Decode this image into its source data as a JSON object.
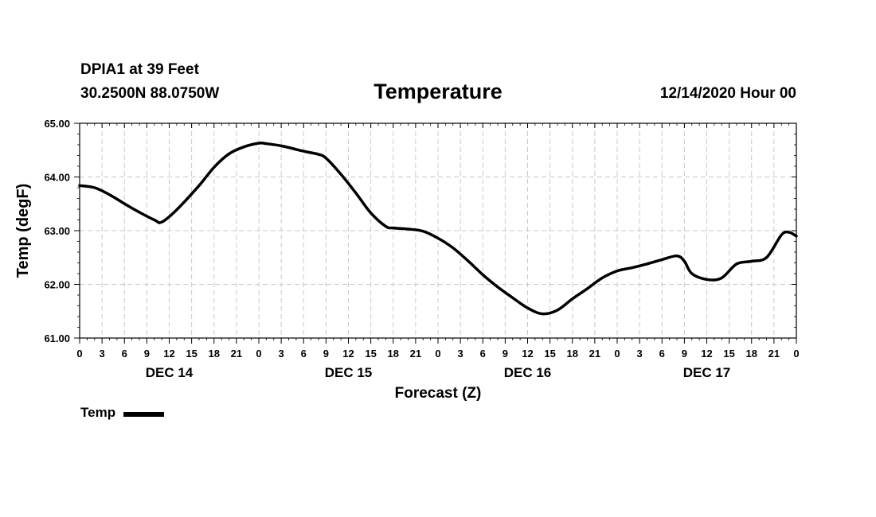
{
  "header": {
    "station": "DPIA1 at 39 Feet",
    "coords": "30.2500N 88.0750W",
    "title": "Temperature",
    "timestamp": "12/14/2020 Hour 00"
  },
  "legend": {
    "label": "Temp"
  },
  "colors": {
    "line": "#000000",
    "grid": "#c8c8c8",
    "axis": "#000000"
  },
  "chart_data": {
    "type": "line",
    "title": "Temperature",
    "xlabel": "Forecast (Z)",
    "ylabel": "Temp (degF)",
    "ylim": [
      61.0,
      65.0
    ],
    "xlim": [
      0,
      96
    ],
    "y_ticks": [
      61.0,
      62.0,
      63.0,
      64.0,
      65.0
    ],
    "y_tick_labels": [
      "61.00",
      "62.00",
      "63.00",
      "64.00",
      "65.00"
    ],
    "x_ticks": [
      0,
      3,
      6,
      9,
      12,
      15,
      18,
      21,
      24,
      27,
      30,
      33,
      36,
      39,
      42,
      45,
      48,
      51,
      54,
      57,
      60,
      63,
      66,
      69,
      72,
      75,
      78,
      81,
      84,
      87,
      90,
      93,
      96
    ],
    "x_tick_labels": [
      "0",
      "3",
      "6",
      "9",
      "12",
      "15",
      "18",
      "21",
      "0",
      "3",
      "6",
      "9",
      "12",
      "15",
      "18",
      "21",
      "0",
      "3",
      "6",
      "9",
      "12",
      "15",
      "18",
      "21",
      "0",
      "3",
      "6",
      "9",
      "12",
      "15",
      "18",
      "21",
      "0"
    ],
    "day_labels": [
      {
        "label": "DEC 14",
        "hour": 12
      },
      {
        "label": "DEC 15",
        "hour": 36
      },
      {
        "label": "DEC 16",
        "hour": 60
      },
      {
        "label": "DEC 17",
        "hour": 84
      }
    ],
    "grid": true,
    "series": [
      {
        "name": "Temp",
        "x": [
          0,
          2,
          4,
          7,
          10,
          11,
          13,
          16,
          18,
          20,
          22,
          24,
          25,
          27,
          30,
          32,
          33,
          35,
          37,
          39,
          41,
          42,
          44,
          46,
          48,
          50,
          52,
          54,
          56,
          58,
          60,
          62,
          64,
          66,
          68,
          70,
          72,
          74,
          76,
          78,
          80,
          81,
          82,
          84,
          86,
          88,
          90,
          92,
          94,
          95,
          96
        ],
        "values": [
          63.84,
          63.8,
          63.67,
          63.42,
          63.2,
          63.16,
          63.39,
          63.84,
          64.18,
          64.43,
          64.56,
          64.63,
          64.62,
          64.58,
          64.48,
          64.42,
          64.35,
          64.05,
          63.7,
          63.33,
          63.08,
          63.05,
          63.03,
          62.99,
          62.86,
          62.68,
          62.44,
          62.18,
          61.95,
          61.75,
          61.56,
          61.45,
          61.52,
          61.73,
          61.92,
          62.12,
          62.25,
          62.31,
          62.38,
          62.46,
          62.53,
          62.43,
          62.2,
          62.09,
          62.12,
          62.38,
          62.43,
          62.5,
          62.92,
          62.97,
          62.9
        ]
      }
    ]
  }
}
